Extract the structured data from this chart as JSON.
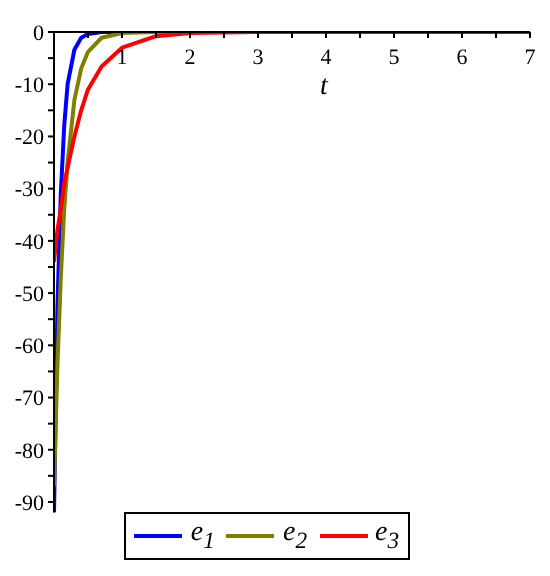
{
  "chart_data": {
    "type": "line",
    "xlabel": "t",
    "x": [
      0,
      0.05,
      0.1,
      0.15,
      0.2,
      0.3,
      0.4,
      0.5,
      0.7,
      1,
      1.5,
      2,
      3,
      4,
      5,
      6,
      7
    ],
    "series": [
      {
        "name": "e$_{1}$",
        "color": "#0000ff",
        "values": [
          -92,
          -53,
          -31,
          -18,
          -10,
          -3.4,
          -1.1,
          -0.4,
          0,
          0,
          0,
          null,
          null,
          null,
          null,
          null,
          null
        ]
      },
      {
        "name": "e$_{2}$",
        "color": "#808000",
        "values": [
          -87,
          -64,
          -47,
          -34,
          -25,
          -13,
          -7,
          -3.8,
          -1.1,
          -0.2,
          0,
          0,
          null,
          null,
          null,
          null,
          null
        ]
      },
      {
        "name": "e$_{3}$",
        "color": "#ff0000",
        "values": [
          -44,
          -38,
          -34,
          -29,
          -26,
          -20,
          -15,
          -11,
          -6.6,
          -3,
          -0.8,
          -0.2,
          0,
          0,
          0,
          0,
          0
        ]
      }
    ],
    "xlim": [
      0,
      7
    ],
    "xticks": [
      {
        "value": 0.5,
        "label": null
      },
      1,
      {
        "value": 1.5,
        "label": null
      },
      2,
      {
        "value": 2.5,
        "label": null
      },
      3,
      {
        "value": 3.5,
        "label": null
      },
      4,
      {
        "value": 4.5,
        "label": null
      },
      5,
      {
        "value": 5.5,
        "label": null
      },
      6,
      {
        "value": 6.5,
        "label": null
      },
      7
    ],
    "ylim": [
      -92,
      0
    ],
    "yticks": [
      0,
      {
        "value": -5,
        "label": null
      },
      -10,
      {
        "value": -15,
        "label": null
      },
      -20,
      {
        "value": -25,
        "label": null
      },
      -30,
      {
        "value": -35,
        "label": null
      },
      -40,
      {
        "value": -45,
        "label": null
      },
      -50,
      {
        "value": -55,
        "label": null
      },
      -60,
      {
        "value": -65,
        "label": null
      },
      -70,
      {
        "value": -75,
        "label": null
      },
      -80,
      {
        "value": -85,
        "label": null
      },
      -90
    ],
    "grid": false,
    "legend": "bottom",
    "marker": "none",
    "line_style": "solid"
  }
}
